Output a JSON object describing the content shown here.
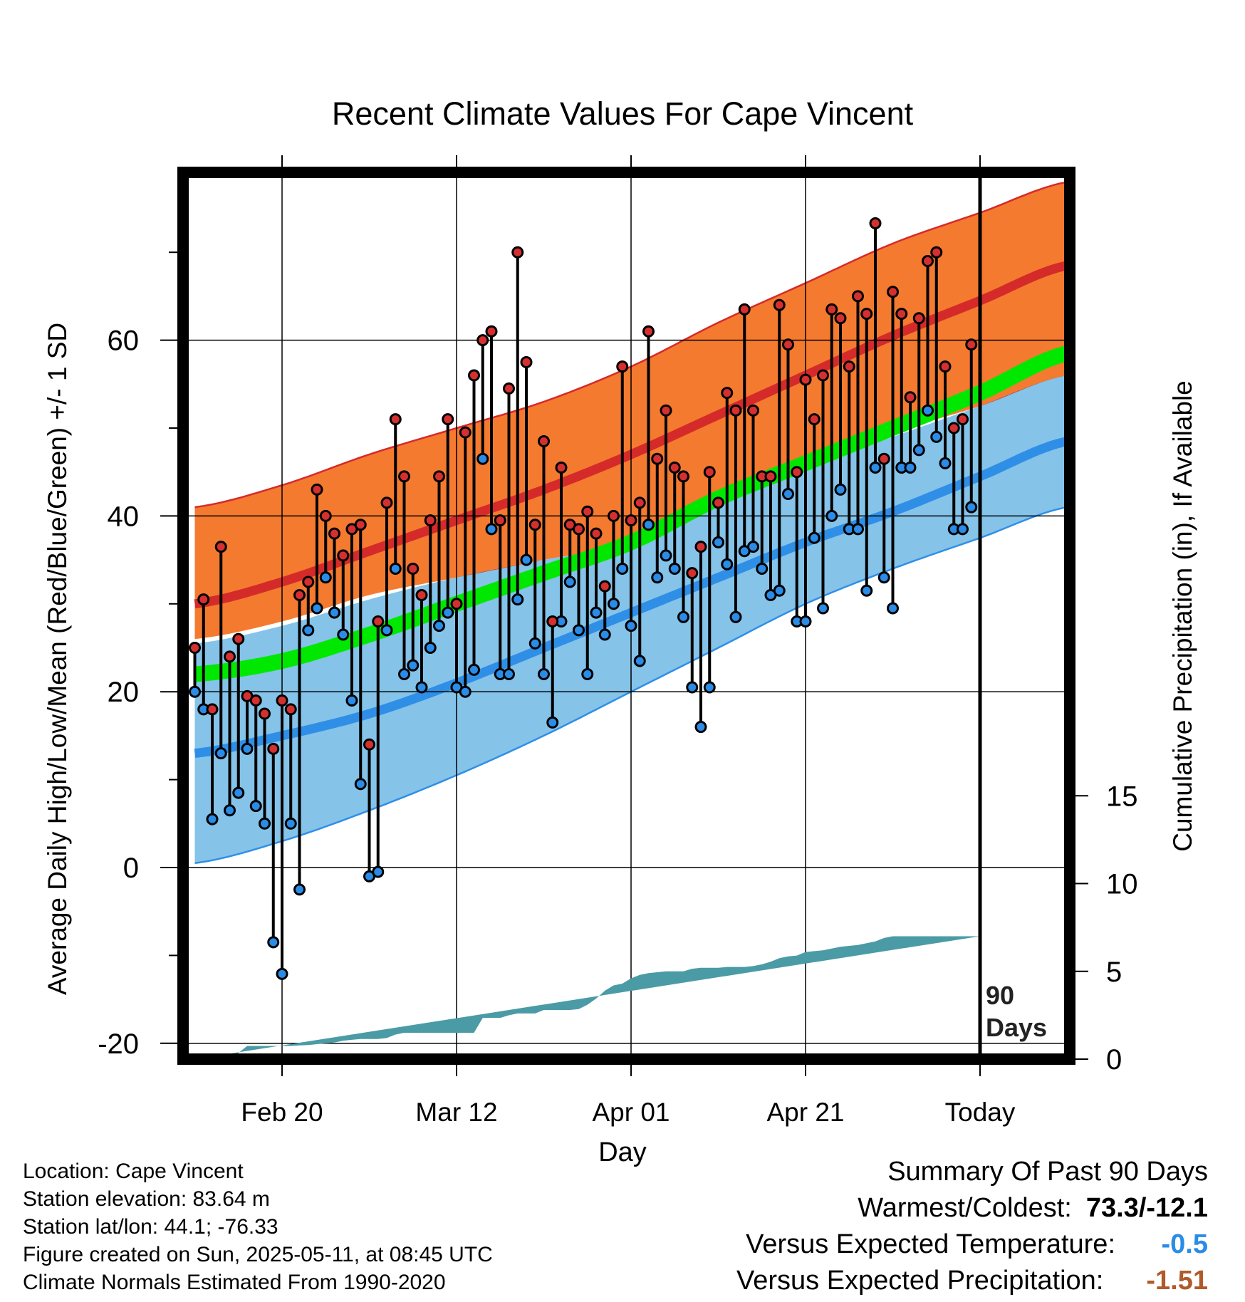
{
  "chart_data": {
    "type": "line",
    "title": "Recent Climate Values For Cape Vincent",
    "xlabel": "Day",
    "ylabel": "Average Daily High/Low/Mean (Red/Blue/Green) +/- 1 SD",
    "y2label": "Cumulative Precipitation (in), If Available",
    "xlim": [
      -10.5,
      90
    ],
    "ylim": [
      -22,
      78
    ],
    "y2lim": [
      0,
      20
    ],
    "x_ticks": [
      {
        "x": 0,
        "label": "Feb 20"
      },
      {
        "x": 20,
        "label": "Mar 12"
      },
      {
        "x": 40,
        "label": "Apr 01"
      },
      {
        "x": 60,
        "label": "Apr 21"
      },
      {
        "x": 80,
        "label": "Today"
      }
    ],
    "y_ticks": [
      -20,
      0,
      20,
      40,
      60
    ],
    "y2_ticks": [
      0,
      5,
      10,
      15
    ],
    "grid": true,
    "today_marker": {
      "x": 80,
      "label": "90 Days"
    },
    "colors": {
      "high_band": "#f47a2f",
      "high_normal": "#d52a2a",
      "low_band": "#85c3e9",
      "low_normal": "#2f8fe6",
      "mean_normal": "#00e800",
      "overlap": "#a01616",
      "precip": "#4a9ba5",
      "high_point": "#d53030",
      "low_point": "#2a8ce6"
    },
    "normals": {
      "x": [
        -10,
        0,
        10,
        20,
        30,
        40,
        50,
        60,
        70,
        80,
        90
      ],
      "high_mean": [
        30,
        32.5,
        36,
        39.5,
        43,
        47,
        51.5,
        56,
        60.5,
        64.5,
        68.5
      ],
      "high_upper": [
        41,
        43.5,
        47,
        50,
        53,
        57,
        62,
        66.5,
        71,
        74.5,
        78
      ],
      "high_lower": [
        26,
        28,
        31,
        33,
        35,
        37,
        42,
        46,
        49.5,
        52.5,
        56
      ],
      "low_mean": [
        13,
        15,
        17.5,
        21,
        25,
        29,
        33,
        37,
        40.5,
        44.5,
        48.5
      ],
      "low_upper": [
        25.5,
        27.5,
        30.5,
        33,
        35,
        37,
        41.5,
        45.5,
        49,
        52.5,
        56
      ],
      "low_lower": [
        0.5,
        3,
        6.5,
        10.5,
        15,
        20,
        25,
        30,
        34,
        37.5,
        41
      ],
      "mean_mean": [
        22,
        23.5,
        26.5,
        30,
        33.5,
        37,
        42,
        46,
        50,
        54,
        58.5
      ]
    },
    "series": [
      {
        "name": "High",
        "x": [
          -10,
          -9,
          -8,
          -7,
          -6,
          -5,
          -4,
          -3,
          -2,
          -1,
          0,
          1,
          2,
          3,
          4,
          5,
          6,
          7,
          8,
          9,
          10,
          11,
          12,
          13,
          14,
          15,
          16,
          17,
          18,
          19,
          20,
          21,
          22,
          23,
          24,
          25,
          26,
          27,
          28,
          29,
          30,
          31,
          32,
          33,
          34,
          35,
          36,
          37,
          38,
          39,
          40,
          41,
          42,
          43,
          44,
          45,
          46,
          47,
          48,
          49,
          50,
          51,
          52,
          53,
          54,
          55,
          56,
          57,
          58,
          59,
          60,
          61,
          62,
          63,
          64,
          65,
          66,
          67,
          68,
          69,
          70,
          71,
          72,
          73,
          74,
          75,
          76,
          77,
          78,
          79
        ],
        "values": [
          25,
          30.5,
          18,
          36.5,
          24,
          26,
          19.5,
          19,
          17.5,
          13.5,
          19,
          18,
          31,
          32.5,
          43,
          40,
          38,
          35.5,
          38.5,
          39,
          14,
          28,
          41.5,
          51,
          44.5,
          34,
          31,
          39.5,
          44.5,
          51,
          30,
          49.5,
          56,
          60,
          61,
          39.5,
          54.5,
          70,
          57.5,
          39,
          48.5,
          28,
          45.5,
          39,
          38.5,
          40.5,
          38,
          32,
          40,
          57,
          39.5,
          41.5,
          61,
          46.5,
          52,
          45.5,
          44.5,
          33.5,
          36.5,
          45,
          41.5,
          54,
          52,
          63.5,
          52,
          44.5,
          44.5,
          64,
          59.5,
          45,
          55.5,
          51,
          56,
          63.5,
          62.5,
          57,
          65,
          63,
          73.3,
          46.5,
          65.5,
          63,
          53.5,
          62.5,
          69,
          70,
          57,
          50,
          51,
          59.5
        ]
      },
      {
        "name": "Low",
        "x": [
          -10,
          -9,
          -8,
          -7,
          -6,
          -5,
          -4,
          -3,
          -2,
          -1,
          0,
          1,
          2,
          3,
          4,
          5,
          6,
          7,
          8,
          9,
          10,
          11,
          12,
          13,
          14,
          15,
          16,
          17,
          18,
          19,
          20,
          21,
          22,
          23,
          24,
          25,
          26,
          27,
          28,
          29,
          30,
          31,
          32,
          33,
          34,
          35,
          36,
          37,
          38,
          39,
          40,
          41,
          42,
          43,
          44,
          45,
          46,
          47,
          48,
          49,
          50,
          51,
          52,
          53,
          54,
          55,
          56,
          57,
          58,
          59,
          60,
          61,
          62,
          63,
          64,
          65,
          66,
          67,
          68,
          69,
          70,
          71,
          72,
          73,
          74,
          75,
          76,
          77,
          78,
          79
        ],
        "values": [
          20,
          18,
          5.5,
          13,
          6.5,
          8.5,
          13.5,
          7,
          5,
          -8.5,
          -12.1,
          5,
          -2.5,
          27,
          29.5,
          33,
          29,
          26.5,
          19,
          9.5,
          -1,
          -0.5,
          27,
          34,
          22,
          23,
          20.5,
          25,
          27.5,
          29,
          20.5,
          20,
          22.5,
          46.5,
          38.5,
          22,
          22,
          30.5,
          35,
          25.5,
          22,
          16.5,
          28,
          32.5,
          27,
          22,
          29,
          26.5,
          30,
          34,
          27.5,
          23.5,
          39,
          33,
          35.5,
          34,
          28.5,
          20.5,
          16,
          20.5,
          37,
          34.5,
          28.5,
          36,
          36.5,
          34,
          31,
          31.5,
          42.5,
          28,
          28,
          37.5,
          29.5,
          40,
          43,
          38.5,
          38.5,
          31.5,
          45.5,
          33,
          29.5,
          45.5,
          45.5,
          47.5,
          52,
          49,
          46,
          38.5,
          38.5,
          41
        ]
      }
    ],
    "precipitation": {
      "x": [
        -10,
        -9,
        -8,
        -7,
        -6,
        -5,
        -4,
        -3,
        -2,
        -1,
        0,
        1,
        2,
        3,
        4,
        5,
        6,
        7,
        8,
        9,
        10,
        11,
        12,
        13,
        14,
        15,
        16,
        17,
        18,
        19,
        20,
        21,
        22,
        23,
        24,
        25,
        26,
        27,
        28,
        29,
        30,
        31,
        32,
        33,
        34,
        35,
        36,
        37,
        38,
        39,
        40,
        41,
        42,
        43,
        44,
        45,
        46,
        47,
        48,
        49,
        50,
        51,
        52,
        53,
        54,
        55,
        56,
        57,
        58,
        59,
        60,
        61,
        62,
        63,
        64,
        65,
        66,
        67,
        68,
        69,
        70,
        71,
        72,
        73,
        74,
        75,
        76,
        77,
        78,
        79,
        80,
        81,
        82,
        83,
        84,
        85,
        86,
        87,
        88,
        89,
        90
      ],
      "cumulative": [
        0,
        0,
        0,
        0.05,
        0.1,
        0.35,
        0.75,
        0.75,
        0.75,
        0.75,
        0.75,
        0.75,
        0.78,
        0.8,
        0.85,
        0.9,
        0.95,
        1.05,
        1.1,
        1.15,
        1.15,
        1.15,
        1.2,
        1.4,
        1.5,
        1.5,
        1.5,
        1.5,
        1.5,
        1.5,
        1.5,
        1.5,
        1.5,
        2.35,
        2.35,
        2.35,
        2.5,
        2.6,
        2.6,
        2.6,
        2.8,
        2.8,
        2.8,
        2.8,
        2.85,
        3.1,
        3.45,
        3.9,
        4.2,
        4.3,
        4.6,
        4.8,
        4.9,
        4.95,
        5.0,
        5.0,
        5.0,
        5.15,
        5.2,
        5.2,
        5.2,
        5.25,
        5.25,
        5.25,
        5.3,
        5.4,
        5.55,
        5.75,
        5.85,
        5.9,
        6.1,
        6.15,
        6.2,
        6.3,
        6.4,
        6.45,
        6.5,
        6.6,
        6.7,
        6.9,
        7.0,
        7.0,
        7.0,
        7.0,
        7.0,
        7.0,
        7.0,
        7.0,
        7.0,
        7.0,
        7.0
      ]
    }
  },
  "footer": {
    "location": "Location: Cape Vincent",
    "elevation": "Station elevation: 83.64 m",
    "latlon": "Station lat/lon: 44.1; -76.33",
    "created": "Figure created on Sun, 2025-05-11, at 08:45 UTC",
    "normals": "Climate Normals Estimated From 1990-2020"
  },
  "summary": {
    "title": "Summary Of Past 90 Days",
    "warmest_label": "Warmest/Coldest:",
    "warmest_value": "73.3/-12.1",
    "temp_label": "Versus Expected Temperature:",
    "temp_value": "-0.5",
    "temp_color": "#2a8ce6",
    "precip_label": "Versus Expected Precipitation:",
    "precip_value": "-1.51",
    "precip_color": "#b05a2a"
  }
}
